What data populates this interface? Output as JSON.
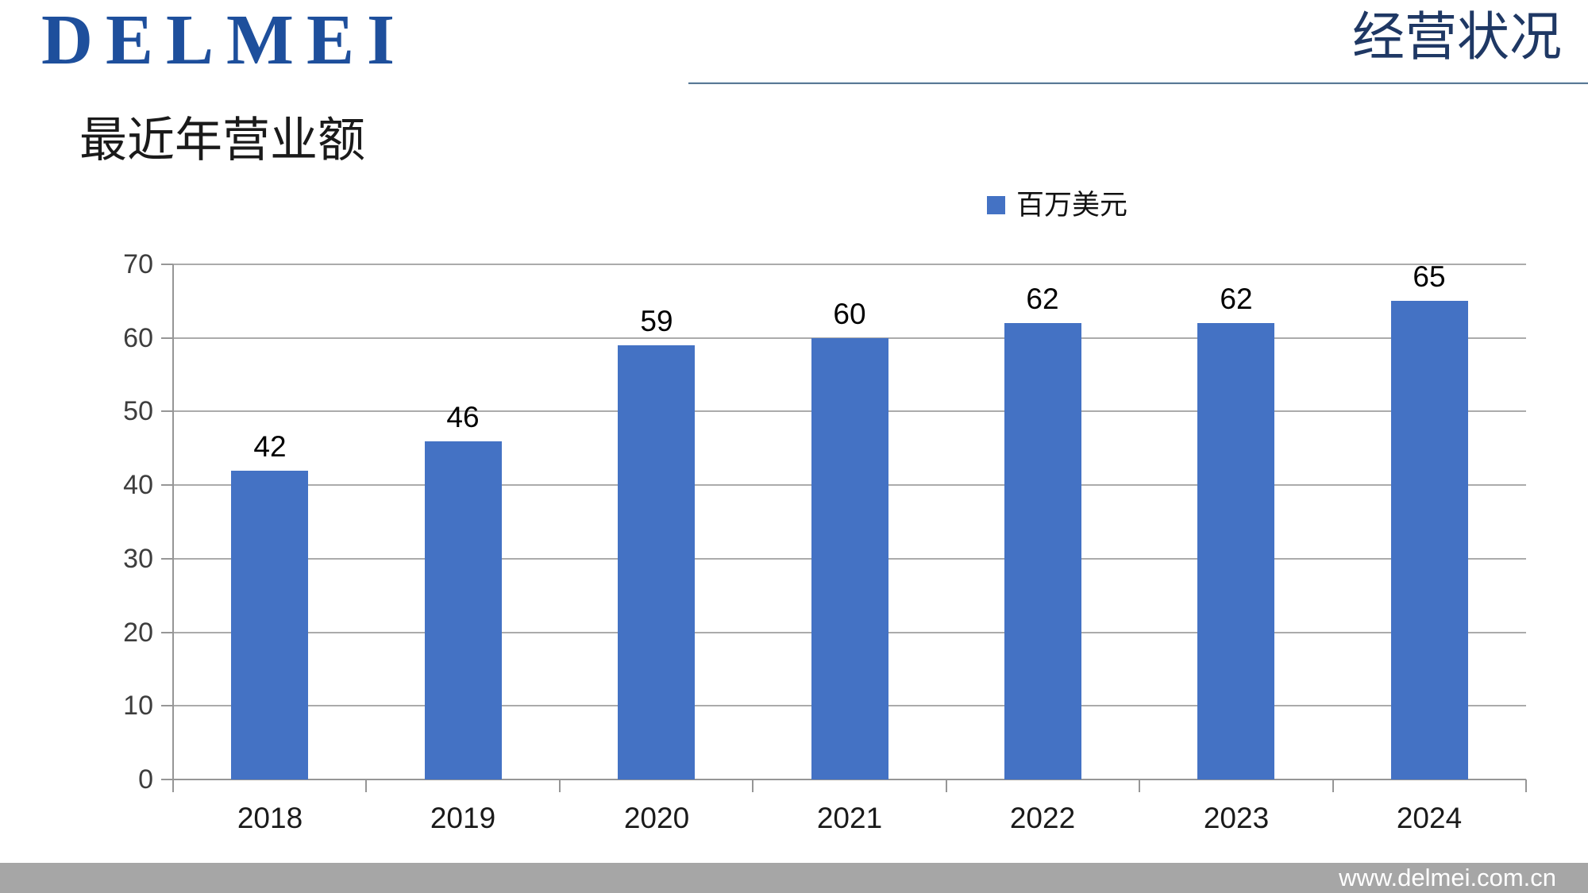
{
  "header": {
    "logo_text": "DELMEI",
    "section_label": "经营状况"
  },
  "slide": {
    "title": "最近年营业额"
  },
  "chart_data": {
    "type": "bar",
    "title": "最近年营业额",
    "categories": [
      "2018",
      "2019",
      "2020",
      "2021",
      "2022",
      "2023",
      "2024"
    ],
    "series": [
      {
        "name": "百万美元",
        "values": [
          42,
          46,
          59,
          60,
          62,
          62,
          65
        ]
      }
    ],
    "data_labels": [
      42,
      46,
      59,
      60,
      62,
      62,
      65
    ],
    "xlabel": "",
    "ylabel": "",
    "ylim": [
      0,
      70
    ],
    "yticks": [
      0,
      10,
      20,
      30,
      40,
      50,
      60,
      70
    ],
    "grid": true,
    "legend_position": "top",
    "legend_entries": [
      "百万美元"
    ],
    "bar_color": "#4472C4"
  },
  "footer": {
    "website": "www.delmei.com.cn"
  },
  "colors": {
    "logo_blue": "#1E4F9C",
    "section_label_blue": "#1F3864",
    "header_rule": "#5A7996",
    "bar_blue": "#4472C4",
    "gridline_gray": "#ABABAB",
    "axis_gray": "#969696",
    "footer_gray": "#A6A6A6",
    "footer_text": "#FFFFFF"
  }
}
